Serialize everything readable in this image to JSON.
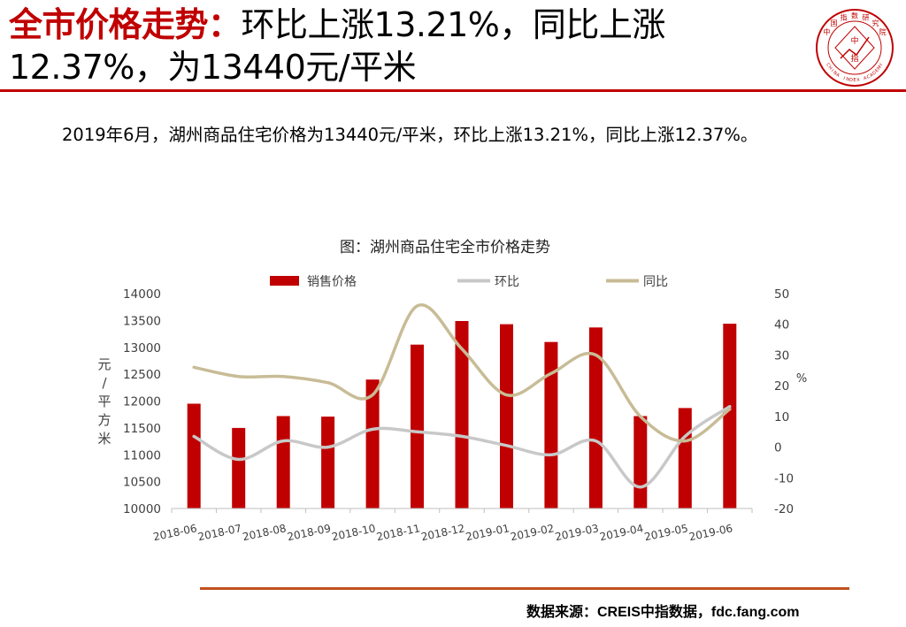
{
  "headline": {
    "prefix": "全市价格走势：",
    "rest": "环比上涨13.21%，同比上涨12.37%，为13440元/平米"
  },
  "seal": {
    "arc_text": "中国指数研究院",
    "center_chars": [
      "中",
      "指"
    ],
    "bottom_text": "CHINA INDEX ACADEMY",
    "color": "#c00000"
  },
  "summary": "2019年6月，湖州商品住宅价格为13440元/平米，环比上涨13.21%，同比上涨12.37%。",
  "source": "数据来源：CREIS中指数据，fdc.fang.com",
  "chart_data": {
    "type": "bar",
    "title": "图：湖州商品住宅全市价格走势",
    "categories": [
      "2018-06",
      "2018-07",
      "2018-08",
      "2018-09",
      "2018-10",
      "2018-11",
      "2018-12",
      "2019-01",
      "2019-02",
      "2019-03",
      "2019-04",
      "2019-05",
      "2019-06"
    ],
    "series": [
      {
        "name": "销售价格",
        "type": "bar",
        "axis": "left",
        "color": "#c00000",
        "values": [
          11950,
          11500,
          11720,
          11710,
          12400,
          13050,
          13490,
          13430,
          13100,
          13370,
          11720,
          11870,
          13440
        ]
      },
      {
        "name": "环比",
        "type": "line",
        "axis": "right",
        "color": "#c8c8c8",
        "values": [
          3.5,
          -4,
          2,
          0,
          5.8,
          5,
          3.5,
          0.5,
          -2.5,
          2,
          -13,
          3.5,
          13.21
        ]
      },
      {
        "name": "同比",
        "type": "line",
        "axis": "right",
        "color": "#c8bc96",
        "values": [
          26,
          23,
          23,
          21,
          17,
          46,
          32,
          17,
          24,
          30,
          10,
          2,
          12.37
        ]
      }
    ],
    "ylabel": "元/平方米",
    "ylim": [
      10000,
      14000
    ],
    "yticks": [
      10000,
      10500,
      11000,
      11500,
      12000,
      12500,
      13000,
      13500,
      14000
    ],
    "y2label": "%",
    "y2lim": [
      -20,
      50
    ],
    "y2ticks": [
      -20,
      -10,
      0,
      10,
      20,
      30,
      40,
      50
    ],
    "grid": false,
    "legend": "top"
  }
}
